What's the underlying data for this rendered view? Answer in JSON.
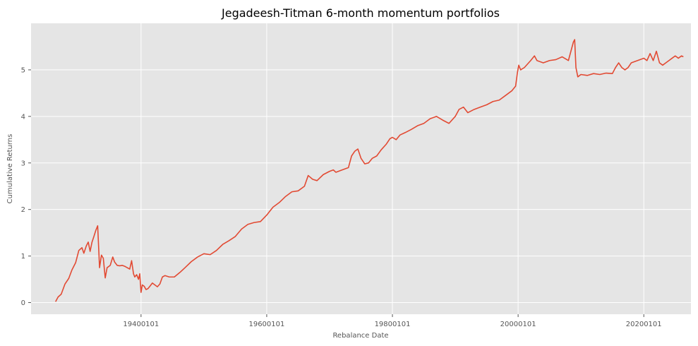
{
  "chart_data": {
    "type": "line",
    "title": "Jegadeesh-Titman 6-month momentum portfolios",
    "xlabel": "Rebalance Date",
    "ylabel": "Cumulative Returns",
    "grid": true,
    "legend": "none",
    "xlim": [
      1922.5,
      2027.5
    ],
    "ylim": [
      -0.25,
      6.0
    ],
    "x_ticks": [
      {
        "value": 1940,
        "label": "19400101"
      },
      {
        "value": 1960,
        "label": "19600101"
      },
      {
        "value": 1980,
        "label": "19800101"
      },
      {
        "value": 2000,
        "label": "20000101"
      },
      {
        "value": 2020,
        "label": "20200101"
      }
    ],
    "y_ticks": [
      {
        "value": 0,
        "label": "0"
      },
      {
        "value": 1,
        "label": "1"
      },
      {
        "value": 2,
        "label": "2"
      },
      {
        "value": 3,
        "label": "3"
      },
      {
        "value": 4,
        "label": "4"
      },
      {
        "value": 5,
        "label": "5"
      }
    ],
    "colors": {
      "series": "#e24a33",
      "plot_background": "#e5e5e5",
      "grid": "#ffffff"
    },
    "series": [
      {
        "x": [
          1926.4,
          1926.8,
          1927.3,
          1927.9,
          1928.5,
          1929.0,
          1929.6,
          1930.1,
          1930.6,
          1930.9,
          1931.3,
          1931.6,
          1931.9,
          1932.2,
          1932.5,
          1932.8,
          1933.1,
          1933.4,
          1933.7,
          1934.0,
          1934.3,
          1934.6,
          1934.9,
          1935.1,
          1935.5,
          1935.8,
          1936.2,
          1936.6,
          1937.0,
          1937.4,
          1937.8,
          1938.2,
          1938.5,
          1938.8,
          1939.0,
          1939.3,
          1939.6,
          1939.8,
          1940.0,
          1940.2,
          1940.5,
          1940.8,
          1941.1,
          1941.4,
          1941.8,
          1942.2,
          1942.6,
          1943.0,
          1943.4,
          1943.8,
          1944.5,
          1945.3,
          1946.2,
          1947.0,
          1948.0,
          1949.0,
          1950.0,
          1951.0,
          1952.0,
          1953.0,
          1954.0,
          1955.0,
          1956.0,
          1957.0,
          1958.0,
          1959.0,
          1960.0,
          1961.0,
          1962.0,
          1963.0,
          1964.0,
          1965.0,
          1966.0,
          1966.6,
          1967.3,
          1968.0,
          1969.0,
          1970.0,
          1970.6,
          1971.0,
          1972.0,
          1973.0,
          1973.5,
          1974.0,
          1974.5,
          1975.0,
          1975.6,
          1976.2,
          1976.8,
          1977.5,
          1978.2,
          1979.0,
          1979.6,
          1980.0,
          1980.6,
          1981.2,
          1982.0,
          1983.0,
          1984.0,
          1985.0,
          1986.0,
          1987.0,
          1988.0,
          1989.0,
          1990.0,
          1990.6,
          1991.3,
          1992.0,
          1993.0,
          1994.0,
          1995.0,
          1996.0,
          1997.0,
          1998.0,
          1999.0,
          1999.6,
          1999.9,
          2000.1,
          2000.4,
          2001.0,
          2002.0,
          2002.6,
          2003.0,
          2004.0,
          2005.0,
          2006.0,
          2007.0,
          2008.0,
          2008.8,
          2009.0,
          2009.2,
          2009.5,
          2010.0,
          2011.0,
          2012.0,
          2013.0,
          2014.0,
          2015.0,
          2015.5,
          2016.0,
          2016.5,
          2017.0,
          2017.5,
          2018.0,
          2019.0,
          2020.0,
          2020.5,
          2021.0,
          2021.5,
          2022.0,
          2022.5,
          2023.0,
          2023.5,
          2024.0,
          2024.5,
          2025.0,
          2025.5,
          2026.0,
          2026.3
        ],
        "y": [
          0.02,
          0.12,
          0.18,
          0.4,
          0.52,
          0.7,
          0.86,
          1.12,
          1.18,
          1.06,
          1.22,
          1.3,
          1.1,
          1.3,
          1.42,
          1.55,
          1.65,
          0.75,
          1.02,
          0.95,
          0.53,
          0.75,
          0.78,
          0.8,
          0.98,
          0.87,
          0.8,
          0.79,
          0.8,
          0.78,
          0.75,
          0.72,
          0.9,
          0.62,
          0.55,
          0.6,
          0.5,
          0.62,
          0.22,
          0.38,
          0.35,
          0.28,
          0.3,
          0.35,
          0.42,
          0.38,
          0.34,
          0.4,
          0.55,
          0.58,
          0.55,
          0.55,
          0.65,
          0.75,
          0.88,
          0.98,
          1.05,
          1.03,
          1.12,
          1.25,
          1.33,
          1.42,
          1.58,
          1.68,
          1.72,
          1.74,
          1.88,
          2.05,
          2.15,
          2.28,
          2.38,
          2.4,
          2.5,
          2.73,
          2.65,
          2.62,
          2.75,
          2.82,
          2.85,
          2.8,
          2.85,
          2.9,
          3.15,
          3.25,
          3.3,
          3.1,
          2.98,
          3.0,
          3.1,
          3.15,
          3.28,
          3.4,
          3.52,
          3.55,
          3.5,
          3.6,
          3.65,
          3.72,
          3.8,
          3.85,
          3.95,
          4.0,
          3.92,
          3.85,
          4.0,
          4.15,
          4.2,
          4.08,
          4.15,
          4.2,
          4.25,
          4.32,
          4.35,
          4.45,
          4.55,
          4.65,
          4.95,
          5.1,
          5.0,
          5.05,
          5.2,
          5.3,
          5.2,
          5.15,
          5.2,
          5.22,
          5.28,
          5.2,
          5.6,
          5.65,
          5.05,
          4.85,
          4.9,
          4.88,
          4.92,
          4.9,
          4.93,
          4.92,
          5.05,
          5.15,
          5.05,
          5.0,
          5.05,
          5.15,
          5.2,
          5.25,
          5.2,
          5.35,
          5.2,
          5.4,
          5.15,
          5.1,
          5.15,
          5.2,
          5.25,
          5.3,
          5.25,
          5.3,
          5.28
        ]
      }
    ]
  }
}
